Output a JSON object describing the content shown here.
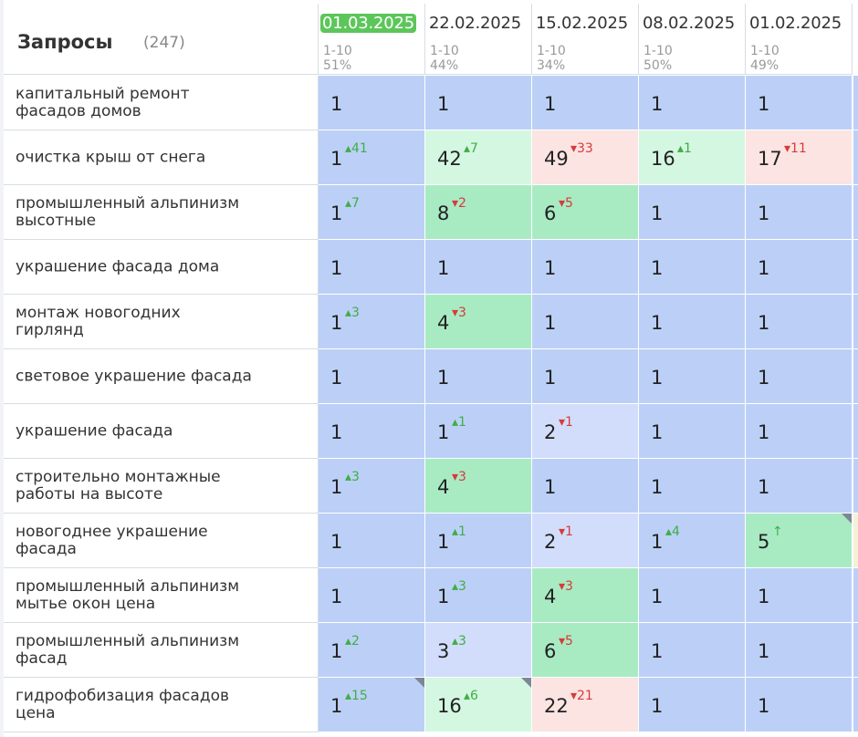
{
  "header": {
    "title": "Запросы",
    "count": "(247)"
  },
  "dates": [
    {
      "label": "01.03.2025",
      "range": "1-10",
      "pct": "51%",
      "active": true
    },
    {
      "label": "22.02.2025",
      "range": "1-10",
      "pct": "44%",
      "active": false
    },
    {
      "label": "15.02.2025",
      "range": "1-10",
      "pct": "34%",
      "active": false
    },
    {
      "label": "08.02.2025",
      "range": "1-10",
      "pct": "50%",
      "active": false
    },
    {
      "label": "01.02.2025",
      "range": "1-10",
      "pct": "49%",
      "active": false
    }
  ],
  "colors": {
    "top": "#bcd0f7",
    "lightblue": "#d2ddfb",
    "green": "#a8ebc3",
    "lightgreen": "#d4f7e1",
    "red": "#fbe4e2",
    "stub": "#f5f1d8"
  },
  "rows": [
    {
      "query": [
        "капитальный ремонт",
        "фасадов домов"
      ],
      "cells": [
        {
          "pos": "1",
          "delta": "",
          "dir": "",
          "bg": "top"
        },
        {
          "pos": "1",
          "delta": "",
          "dir": "",
          "bg": "top"
        },
        {
          "pos": "1",
          "delta": "",
          "dir": "",
          "bg": "top"
        },
        {
          "pos": "1",
          "delta": "",
          "dir": "",
          "bg": "top"
        },
        {
          "pos": "1",
          "delta": "",
          "dir": "",
          "bg": "top"
        }
      ]
    },
    {
      "query": [
        "очистка крыш от снега"
      ],
      "cells": [
        {
          "pos": "1",
          "delta": "▴41",
          "dir": "up",
          "bg": "top"
        },
        {
          "pos": "42",
          "delta": "▴7",
          "dir": "up",
          "bg": "lightgreen"
        },
        {
          "pos": "49",
          "delta": "▾33",
          "dir": "down",
          "bg": "red"
        },
        {
          "pos": "16",
          "delta": "▴1",
          "dir": "up",
          "bg": "lightgreen"
        },
        {
          "pos": "17",
          "delta": "▾11",
          "dir": "down",
          "bg": "red"
        }
      ]
    },
    {
      "query": [
        "промышленный альпинизм",
        "высотные"
      ],
      "cells": [
        {
          "pos": "1",
          "delta": "▴7",
          "dir": "up",
          "bg": "top"
        },
        {
          "pos": "8",
          "delta": "▾2",
          "dir": "down",
          "bg": "green"
        },
        {
          "pos": "6",
          "delta": "▾5",
          "dir": "down",
          "bg": "green"
        },
        {
          "pos": "1",
          "delta": "",
          "dir": "",
          "bg": "top"
        },
        {
          "pos": "1",
          "delta": "",
          "dir": "",
          "bg": "top"
        }
      ]
    },
    {
      "query": [
        "украшение фасада дома"
      ],
      "cells": [
        {
          "pos": "1",
          "delta": "",
          "dir": "",
          "bg": "top"
        },
        {
          "pos": "1",
          "delta": "",
          "dir": "",
          "bg": "top"
        },
        {
          "pos": "1",
          "delta": "",
          "dir": "",
          "bg": "top"
        },
        {
          "pos": "1",
          "delta": "",
          "dir": "",
          "bg": "top"
        },
        {
          "pos": "1",
          "delta": "",
          "dir": "",
          "bg": "top"
        }
      ]
    },
    {
      "query": [
        "монтаж новогодних",
        "гирлянд"
      ],
      "cells": [
        {
          "pos": "1",
          "delta": "▴3",
          "dir": "up",
          "bg": "top"
        },
        {
          "pos": "4",
          "delta": "▾3",
          "dir": "down",
          "bg": "green"
        },
        {
          "pos": "1",
          "delta": "",
          "dir": "",
          "bg": "top"
        },
        {
          "pos": "1",
          "delta": "",
          "dir": "",
          "bg": "top"
        },
        {
          "pos": "1",
          "delta": "",
          "dir": "",
          "bg": "top"
        }
      ]
    },
    {
      "query": [
        "световое украшение фасада"
      ],
      "cells": [
        {
          "pos": "1",
          "delta": "",
          "dir": "",
          "bg": "top"
        },
        {
          "pos": "1",
          "delta": "",
          "dir": "",
          "bg": "top"
        },
        {
          "pos": "1",
          "delta": "",
          "dir": "",
          "bg": "top"
        },
        {
          "pos": "1",
          "delta": "",
          "dir": "",
          "bg": "top"
        },
        {
          "pos": "1",
          "delta": "",
          "dir": "",
          "bg": "top"
        }
      ]
    },
    {
      "query": [
        "украшение фасада"
      ],
      "cells": [
        {
          "pos": "1",
          "delta": "",
          "dir": "",
          "bg": "top"
        },
        {
          "pos": "1",
          "delta": "▴1",
          "dir": "up",
          "bg": "top"
        },
        {
          "pos": "2",
          "delta": "▾1",
          "dir": "down",
          "bg": "lightblue"
        },
        {
          "pos": "1",
          "delta": "",
          "dir": "",
          "bg": "top"
        },
        {
          "pos": "1",
          "delta": "",
          "dir": "",
          "bg": "top"
        }
      ]
    },
    {
      "query": [
        "строительно монтажные",
        "работы на высоте"
      ],
      "cells": [
        {
          "pos": "1",
          "delta": "▴3",
          "dir": "up",
          "bg": "top"
        },
        {
          "pos": "4",
          "delta": "▾3",
          "dir": "down",
          "bg": "green"
        },
        {
          "pos": "1",
          "delta": "",
          "dir": "",
          "bg": "top"
        },
        {
          "pos": "1",
          "delta": "",
          "dir": "",
          "bg": "top"
        },
        {
          "pos": "1",
          "delta": "",
          "dir": "",
          "bg": "top"
        }
      ]
    },
    {
      "query": [
        "новогоднее украшение",
        "фасада"
      ],
      "cells": [
        {
          "pos": "1",
          "delta": "",
          "dir": "",
          "bg": "top"
        },
        {
          "pos": "1",
          "delta": "▴1",
          "dir": "up",
          "bg": "top"
        },
        {
          "pos": "2",
          "delta": "▾1",
          "dir": "down",
          "bg": "lightblue"
        },
        {
          "pos": "1",
          "delta": "▴4",
          "dir": "up",
          "bg": "top"
        },
        {
          "pos": "5",
          "delta": "↑",
          "dir": "up",
          "bg": "green",
          "corner": true
        }
      ]
    },
    {
      "query": [
        "промышленный альпинизм",
        "мытье окон цена"
      ],
      "cells": [
        {
          "pos": "1",
          "delta": "",
          "dir": "",
          "bg": "top"
        },
        {
          "pos": "1",
          "delta": "▴3",
          "dir": "up",
          "bg": "top"
        },
        {
          "pos": "4",
          "delta": "▾3",
          "dir": "down",
          "bg": "green"
        },
        {
          "pos": "1",
          "delta": "",
          "dir": "",
          "bg": "top"
        },
        {
          "pos": "1",
          "delta": "",
          "dir": "",
          "bg": "top"
        }
      ]
    },
    {
      "query": [
        "промышленный альпинизм",
        "фасад"
      ],
      "cells": [
        {
          "pos": "1",
          "delta": "▴2",
          "dir": "up",
          "bg": "top"
        },
        {
          "pos": "3",
          "delta": "▴3",
          "dir": "up",
          "bg": "lightblue"
        },
        {
          "pos": "6",
          "delta": "▾5",
          "dir": "down",
          "bg": "green"
        },
        {
          "pos": "1",
          "delta": "",
          "dir": "",
          "bg": "top"
        },
        {
          "pos": "1",
          "delta": "",
          "dir": "",
          "bg": "top"
        }
      ]
    },
    {
      "query": [
        "гидрофобизация фасадов",
        "цена"
      ],
      "cells": [
        {
          "pos": "1",
          "delta": "▴15",
          "dir": "up",
          "bg": "top",
          "corner": true
        },
        {
          "pos": "16",
          "delta": "▴6",
          "dir": "up",
          "bg": "lightgreen",
          "corner": true
        },
        {
          "pos": "22",
          "delta": "▾21",
          "dir": "down",
          "bg": "red"
        },
        {
          "pos": "1",
          "delta": "",
          "dir": "",
          "bg": "top"
        },
        {
          "pos": "1",
          "delta": "",
          "dir": "",
          "bg": "top"
        }
      ]
    }
  ]
}
